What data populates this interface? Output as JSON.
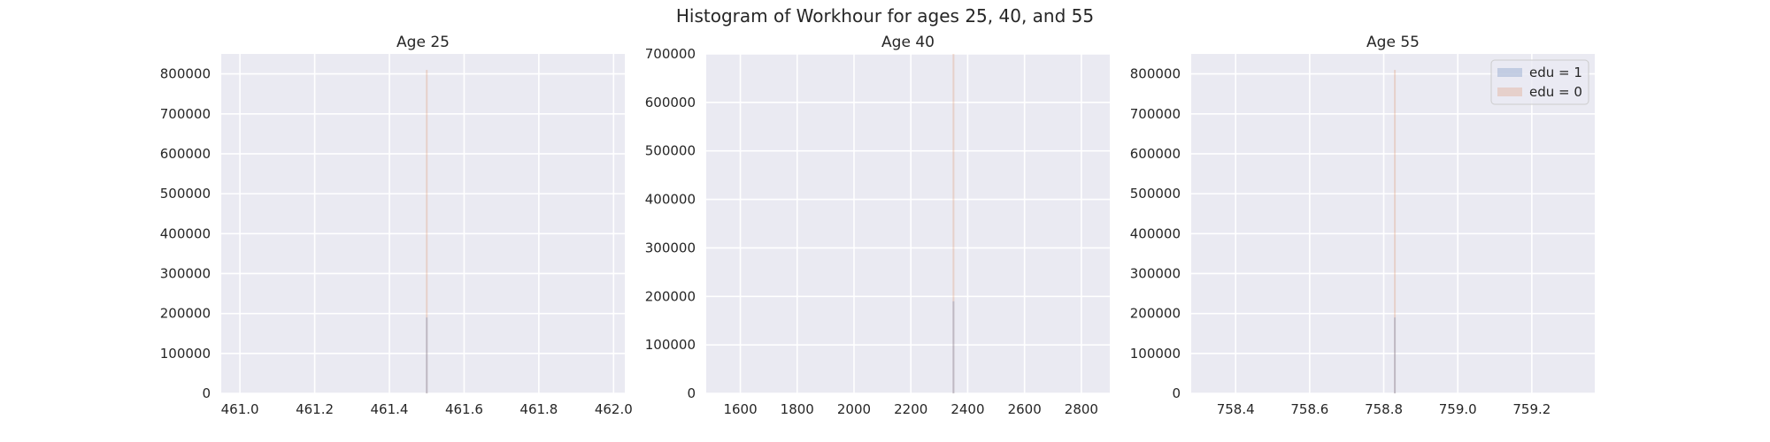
{
  "figure_title": "Histogram of Workhour for ages 25, 40, and 55",
  "colors": {
    "plot_bg": "#eaeaf2",
    "grid": "#ffffff",
    "text": "#262626",
    "edu1": "#4c72b0",
    "edu0": "#dd8452"
  },
  "chart_data": [
    {
      "type": "bar",
      "title": "Age 25",
      "xlabel": "",
      "ylabel": "",
      "xlim": [
        460.95,
        462.03
      ],
      "ylim": [
        0,
        850000
      ],
      "xticks": [
        461.0,
        461.2,
        461.4,
        461.6,
        461.8,
        462.0
      ],
      "xtick_labels": [
        "461.0",
        "461.2",
        "461.4",
        "461.6",
        "461.8",
        "462.0"
      ],
      "yticks": [
        0,
        100000,
        200000,
        300000,
        400000,
        500000,
        600000,
        700000,
        800000
      ],
      "ytick_labels": [
        "0",
        "100000",
        "200000",
        "300000",
        "400000",
        "500000",
        "600000",
        "700000",
        "800000"
      ],
      "grid": true,
      "legend": null,
      "series": [
        {
          "name": "edu = 1",
          "x": 461.5,
          "value": 190000
        },
        {
          "name": "edu = 0",
          "x": 461.5,
          "value": 810000
        }
      ]
    },
    {
      "type": "bar",
      "title": "Age 40",
      "xlabel": "",
      "ylabel": "",
      "xlim": [
        1480,
        2900
      ],
      "ylim": [
        0,
        700000
      ],
      "xticks": [
        1600,
        1800,
        2000,
        2200,
        2400,
        2600,
        2800
      ],
      "xtick_labels": [
        "1600",
        "1800",
        "2000",
        "2200",
        "2400",
        "2600",
        "2800"
      ],
      "yticks": [
        0,
        100000,
        200000,
        300000,
        400000,
        500000,
        600000,
        700000
      ],
      "ytick_labels": [
        "0",
        "100000",
        "200000",
        "300000",
        "400000",
        "500000",
        "600000",
        "700000"
      ],
      "grid": true,
      "legend": null,
      "series": [
        {
          "name": "edu = 1",
          "x": 2350,
          "value": 190000
        },
        {
          "name": "edu = 0",
          "x": 2350,
          "value": 700000
        }
      ]
    },
    {
      "type": "bar",
      "title": "Age 55",
      "xlabel": "",
      "ylabel": "",
      "xlim": [
        758.28,
        759.37
      ],
      "ylim": [
        0,
        850000
      ],
      "xticks": [
        758.4,
        758.6,
        758.8,
        759.0,
        759.2
      ],
      "xtick_labels": [
        "758.4",
        "758.6",
        "758.8",
        "759.0",
        "759.2"
      ],
      "yticks": [
        0,
        100000,
        200000,
        300000,
        400000,
        500000,
        600000,
        700000,
        800000
      ],
      "ytick_labels": [
        "0",
        "100000",
        "200000",
        "300000",
        "400000",
        "500000",
        "600000",
        "700000",
        "800000"
      ],
      "grid": true,
      "legend": "top-right",
      "legend_entries": [
        "edu = 1",
        "edu = 0"
      ],
      "series": [
        {
          "name": "edu = 1",
          "x": 758.83,
          "value": 190000
        },
        {
          "name": "edu = 0",
          "x": 758.83,
          "value": 810000
        }
      ]
    }
  ]
}
